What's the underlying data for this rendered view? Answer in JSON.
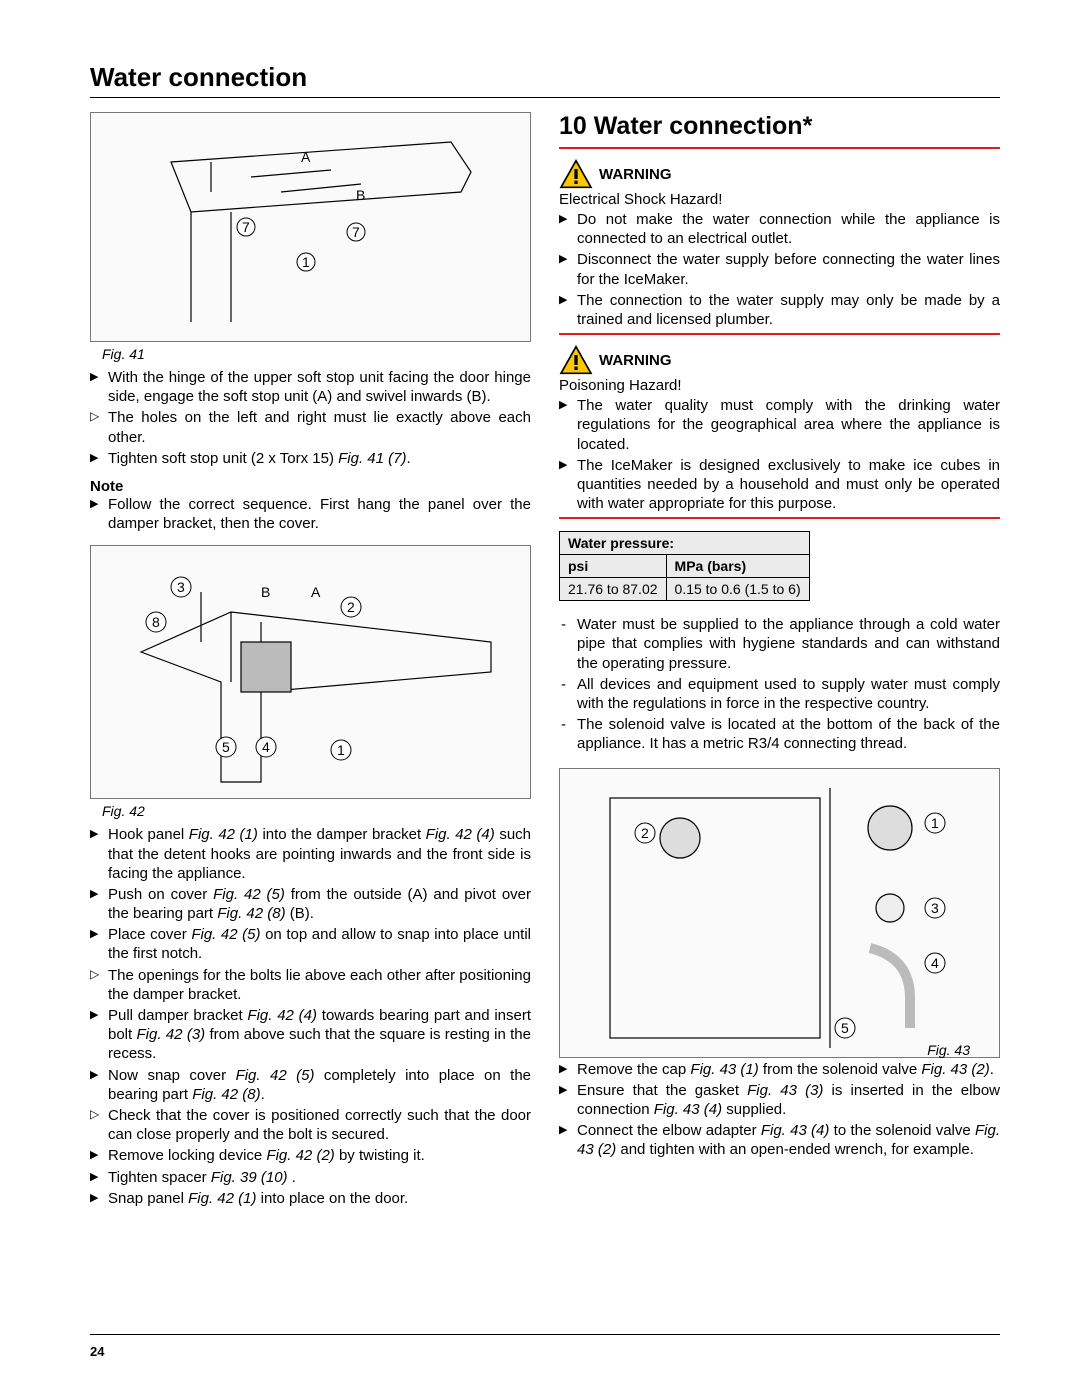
{
  "running_title": "Water connection",
  "page_number": "24",
  "colors": {
    "red": "#e31b1b",
    "warn_fill": "#f9c800",
    "warn_stroke": "#000000",
    "table_bg": "#ebebeb",
    "fig_border": "#777777"
  },
  "left": {
    "fig41": {
      "caption": "Fig. 41",
      "labels": [
        "A",
        "B",
        "7",
        "7",
        "1"
      ]
    },
    "steps41": [
      {
        "marker": "arrow",
        "text": "With the hinge of the upper soft stop unit facing the door hinge side, engage the soft stop unit (A) and swivel inwards (B)."
      },
      {
        "marker": "tri",
        "text": "The holes on the left and right must lie exactly above each other."
      },
      {
        "marker": "arrow",
        "text": "Tighten soft stop unit (2 x Torx 15) ",
        "em": "Fig. 41 (7)",
        "tail": "."
      }
    ],
    "note_head": "Note",
    "note_steps": [
      {
        "marker": "arrow",
        "text": "Follow the correct sequence. First hang the panel over the damper bracket, then the cover."
      }
    ],
    "fig42": {
      "caption": "Fig. 42",
      "labels": [
        "3",
        "8",
        "B",
        "A",
        "2",
        "5",
        "4",
        "1"
      ]
    },
    "steps42": [
      {
        "marker": "arrow",
        "parts": [
          "Hook panel ",
          {
            "em": "Fig. 42 (1)"
          },
          " into the damper bracket ",
          {
            "em": "Fig. 42 (4)"
          },
          " such that the detent hooks are pointing inwards and the front side is facing the appliance."
        ]
      },
      {
        "marker": "arrow",
        "parts": [
          "Push on cover ",
          {
            "em": "Fig. 42 (5)"
          },
          " from the outside (A) and pivot over the bearing part ",
          {
            "em": "Fig. 42 (8)"
          },
          " (B)."
        ]
      },
      {
        "marker": "arrow",
        "parts": [
          "Place cover ",
          {
            "em": "Fig. 42 (5)"
          },
          " on top and allow to snap into place until the first notch."
        ]
      },
      {
        "marker": "tri",
        "parts": [
          "The openings for the bolts lie above each other after positioning the damper bracket."
        ]
      },
      {
        "marker": "arrow",
        "parts": [
          "Pull damper bracket ",
          {
            "em": "Fig. 42 (4)"
          },
          " towards bearing part and insert bolt ",
          {
            "em": "Fig. 42 (3)"
          },
          " from above such that the square is resting in the recess."
        ]
      },
      {
        "marker": "arrow",
        "parts": [
          "Now snap cover ",
          {
            "em": "Fig. 42 (5)"
          },
          " completely into place on the bearing part ",
          {
            "em": "Fig. 42 (8)"
          },
          "."
        ]
      },
      {
        "marker": "tri",
        "parts": [
          "Check that the cover is positioned correctly such that the door can close properly and the bolt is secured."
        ]
      },
      {
        "marker": "arrow",
        "parts": [
          "Remove locking device ",
          {
            "em": "Fig. 42 (2)"
          },
          " by twisting it."
        ]
      },
      {
        "marker": "arrow",
        "parts": [
          "Tighten spacer ",
          {
            "em": "Fig. 39 (10)"
          },
          " ."
        ]
      },
      {
        "marker": "arrow",
        "parts": [
          "Snap panel ",
          {
            "em": "Fig. 42 (1)"
          },
          " into place on the door."
        ]
      }
    ]
  },
  "right": {
    "section_title": "10 Water connection*",
    "warn1": {
      "label": "WARNING",
      "sub": "Electrical Shock Hazard!",
      "items": [
        "Do not make the water connection while the appliance is connected to an electrical outlet.",
        "Disconnect the water supply before connecting the water lines for the IceMaker.",
        "The connection to the water supply may only be made by a trained and licensed plumber."
      ]
    },
    "warn2": {
      "label": "WARNING",
      "sub": "Poisoning Hazard!",
      "items": [
        "The water quality must comply with the drinking water regulations for the geographical area where the appliance is located.",
        "The IceMaker is designed exclusively to make ice cubes in quantities needed by a household and must only be operated with water appropriate for this purpose."
      ]
    },
    "table": {
      "title": "Water pressure:",
      "headers": [
        "psi",
        "MPa (bars)"
      ],
      "row": [
        "21.76 to 87.02",
        "0.15 to 0.6 (1.5 to 6)"
      ]
    },
    "dash_items": [
      "Water must be supplied to the appliance through a cold water pipe that complies with hygiene standards and can withstand the operating pressure.",
      "All devices and equipment used to supply water must comply with the regulations in force in the respective country.",
      "The solenoid valve is located at the bottom of the back of the appliance. It has a metric R3/4 connecting thread."
    ],
    "fig43": {
      "caption": "Fig. 43",
      "labels": [
        "1",
        "2",
        "3",
        "4",
        "5"
      ]
    },
    "steps43": [
      {
        "marker": "arrow",
        "parts": [
          "Remove the cap ",
          {
            "em": "Fig. 43 (1)"
          },
          " from the solenoid valve ",
          {
            "em": "Fig. 43 (2)"
          },
          "."
        ]
      },
      {
        "marker": "arrow",
        "parts": [
          "Ensure that the gasket ",
          {
            "em": "Fig. 43 (3)"
          },
          " is inserted in the elbow connection ",
          {
            "em": "Fig. 43 (4)"
          },
          " supplied."
        ]
      },
      {
        "marker": "arrow",
        "parts": [
          "Connect the elbow adapter ",
          {
            "em": "Fig. 43 (4)"
          },
          " to the solenoid valve ",
          {
            "em": "Fig. 43 (2)"
          },
          " and tighten with an open-ended wrench, for example."
        ]
      }
    ]
  }
}
